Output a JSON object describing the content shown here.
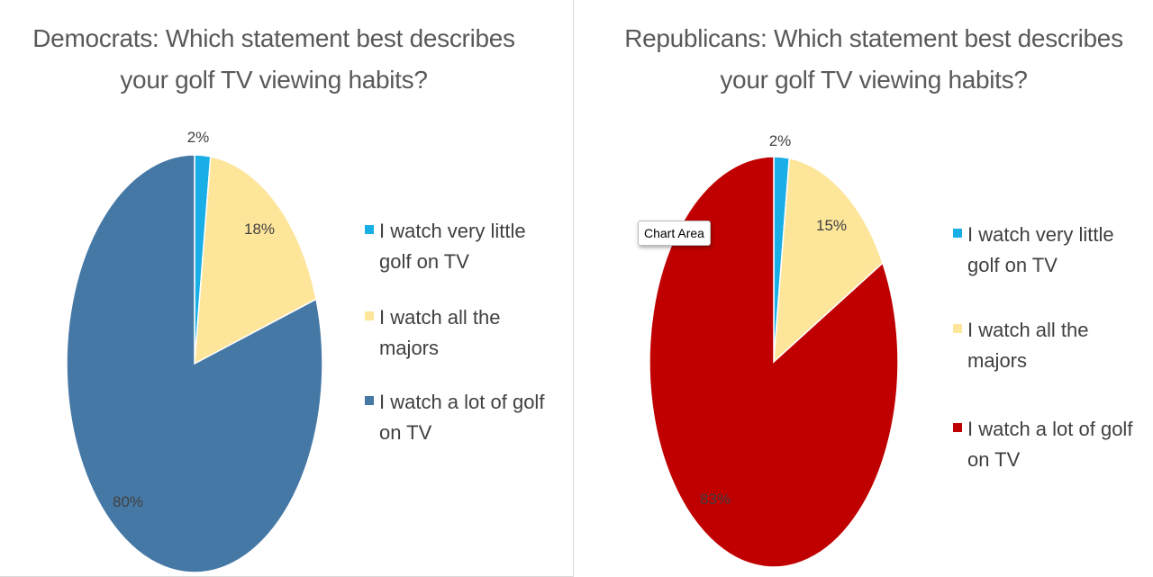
{
  "chart_data": [
    {
      "type": "pie",
      "title": "Democrats: Which statement best describes your golf TV viewing habits?",
      "categories": [
        "I watch very little golf on TV",
        "I watch all the majors",
        "I watch a lot of golf on TV"
      ],
      "values": [
        2,
        18,
        80
      ],
      "data_labels": [
        "2%",
        "18%",
        "80%"
      ],
      "colors": [
        "#1aaee6",
        "#fde59a",
        "#4678a6"
      ],
      "legend_position": "right"
    },
    {
      "type": "pie",
      "title": "Republicans: Which statement best describes your golf TV viewing habits?",
      "categories": [
        "I watch very little golf on TV",
        "I watch all the majors",
        "I watch a lot of golf on TV"
      ],
      "values": [
        2,
        15,
        83
      ],
      "data_labels": [
        "2%",
        "15%",
        "83%"
      ],
      "colors": [
        "#1aaee6",
        "#fde59a",
        "#c00000"
      ],
      "legend_position": "right"
    }
  ],
  "tooltip": {
    "text": "Chart Area"
  }
}
